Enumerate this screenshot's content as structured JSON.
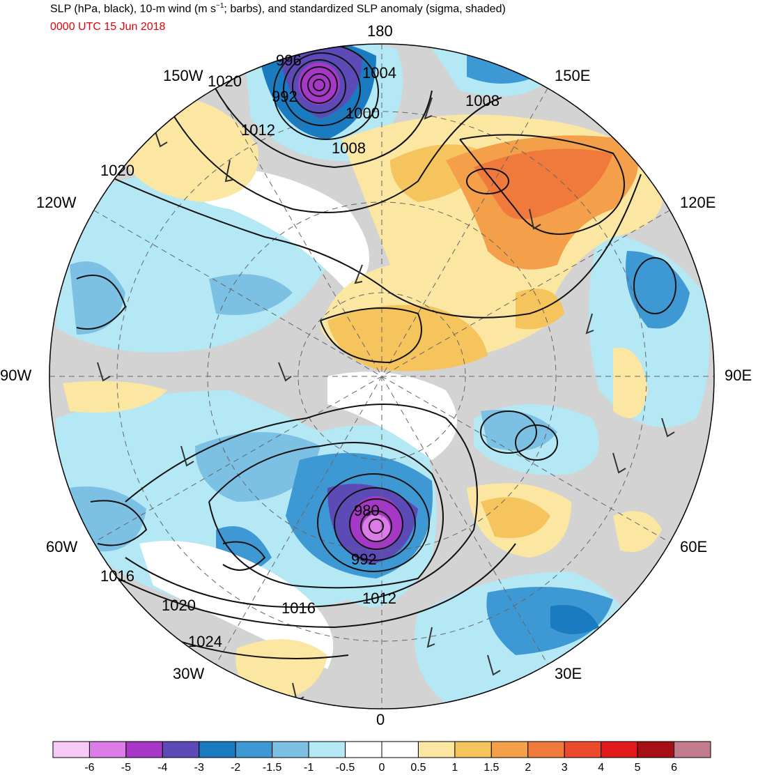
{
  "header": {
    "title": "SLP (hPa, black), 10-m wind (m s",
    "title_sup": "−1",
    "title_rest": "; barbs), and standardized SLP anomaly (sigma, shaded)",
    "date": "0000 UTC 15 Jun 2018"
  },
  "longitude_labels": {
    "top": "180",
    "bottom": "0",
    "left": "90W",
    "right": "90E",
    "ul": "150W",
    "ul2": "120W",
    "ur": "150E",
    "ur2": "120E",
    "ll": "60W",
    "ll2": "30W",
    "lr": "60E",
    "lr2": "30E"
  },
  "isobar_labels": [
    {
      "id": "l996",
      "text": "996"
    },
    {
      "id": "l992a",
      "text": "992"
    },
    {
      "id": "l1004",
      "text": "1004"
    },
    {
      "id": "l1000",
      "text": "1000"
    },
    {
      "id": "l1008a",
      "text": "1008"
    },
    {
      "id": "l1020a",
      "text": "1020"
    },
    {
      "id": "l1012a",
      "text": "1012"
    },
    {
      "id": "l1008b",
      "text": "1008"
    },
    {
      "id": "l1020b",
      "text": "1020"
    },
    {
      "id": "l980",
      "text": "980"
    },
    {
      "id": "l992b",
      "text": "992"
    },
    {
      "id": "l1012b",
      "text": "1012"
    },
    {
      "id": "l1016a",
      "text": "1016"
    },
    {
      "id": "l1016b",
      "text": "1016"
    },
    {
      "id": "l1020c",
      "text": "1020"
    },
    {
      "id": "l1024",
      "text": "1024"
    }
  ],
  "colorbar": {
    "colors": [
      "#f6c9f6",
      "#dd7be8",
      "#a638c8",
      "#5c4bb7",
      "#1a7bc0",
      "#3e98d3",
      "#7cc0e4",
      "#b3e8f4",
      "#ffffff",
      "#ffffff",
      "#fbe6a2",
      "#f5c45c",
      "#f4a04a",
      "#f07a3c",
      "#ec4a2c",
      "#e31a1c",
      "#a50f15",
      "#c27c8e"
    ],
    "labels": [
      "-6",
      "-5",
      "-4",
      "-3",
      "-2",
      "-1.5",
      "-1",
      "-0.5",
      "0",
      "0.5",
      "1",
      "1.5",
      "2",
      "3",
      "4",
      "5",
      "6"
    ]
  }
}
